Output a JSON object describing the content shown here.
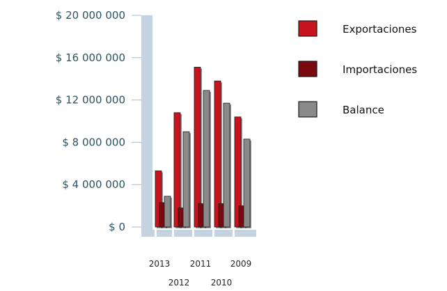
{
  "chart_data": {
    "type": "bar",
    "title": "",
    "xlabel": "",
    "ylabel": "",
    "categories": [
      "2013",
      "2012",
      "2011",
      "2010",
      "2009"
    ],
    "ylim": [
      0,
      20000000
    ],
    "yticks": [
      {
        "value": 0,
        "label": "$ 0"
      },
      {
        "value": 4000000,
        "label": "$ 4 000 000"
      },
      {
        "value": 8000000,
        "label": "$ 8 000 000"
      },
      {
        "value": 12000000,
        "label": "$ 12 000 000"
      },
      {
        "value": 16000000,
        "label": "$ 16 000 000"
      },
      {
        "value": 20000000,
        "label": "$ 20 000 000"
      }
    ],
    "series": [
      {
        "name": "Exportaciones",
        "color": "#c8141e",
        "values": [
          5300000,
          10800000,
          15100000,
          13800000,
          10400000
        ]
      },
      {
        "name": "Importaciones",
        "color": "#7a0a0f",
        "values": [
          2300000,
          1800000,
          2200000,
          2200000,
          2000000
        ]
      },
      {
        "name": "Balance",
        "color": "#8a8a8a",
        "values": [
          2900000,
          9000000,
          12900000,
          11700000,
          8300000
        ]
      }
    ],
    "legend": "right",
    "grid": false
  }
}
